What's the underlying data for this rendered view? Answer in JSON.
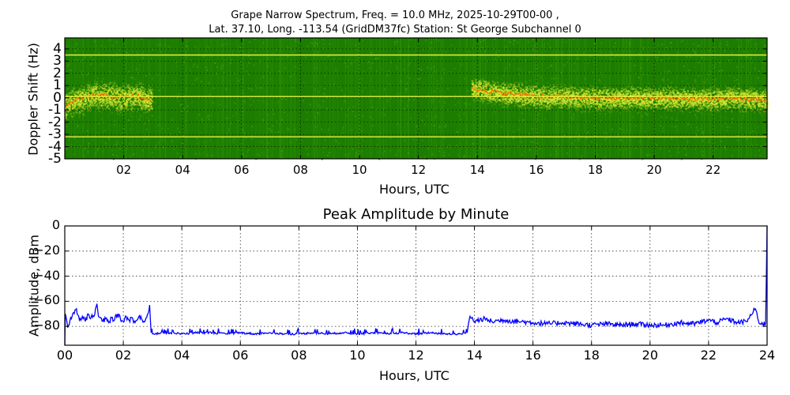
{
  "header": {
    "line1": "Grape Narrow Spectrum, Freq. = 10.0 MHz, 2025-10-29T00-00 ,",
    "line2": "Lat.  37.10, Long. -113.54 (GridDM37fc) Station: St George Subchannel 0"
  },
  "spectrogram": {
    "ylabel": "Doppler Shift (Hz)",
    "xlabel": "Hours, UTC",
    "yticks": [
      "4",
      "3",
      "2",
      "1",
      "0",
      "-1",
      "-2",
      "-3",
      "-4",
      "-5"
    ],
    "xticks": [
      "02",
      "04",
      "06",
      "08",
      "10",
      "12",
      "14",
      "16",
      "18",
      "20",
      "22"
    ],
    "colors": {
      "background": "#1c7d00",
      "noise": "#3a9a08",
      "signal": "#d8e830",
      "peak": "#ff6a00",
      "carrier_line": "#e8f040"
    }
  },
  "amplitude": {
    "title": "Peak Amplitude by Minute",
    "ylabel": "Amplitude, dBm",
    "xlabel": "Hours, UTC",
    "yticks": [
      "0",
      "−20",
      "−40",
      "−60",
      "−80"
    ],
    "xticks": [
      "00",
      "02",
      "04",
      "06",
      "08",
      "10",
      "12",
      "14",
      "16",
      "18",
      "20",
      "22",
      "24"
    ],
    "line_color": "#0000ff"
  },
  "chart_data": [
    {
      "type": "heatmap",
      "title": "Grape Narrow Spectrum, Freq. = 10.0 MHz, 2025-10-29T00-00 , Lat.  37.10, Long. -113.54 (GridDM37fc) Station: St George Subchannel 0",
      "xlabel": "Hours, UTC",
      "ylabel": "Doppler Shift (Hz)",
      "xlim": [
        0,
        23.83
      ],
      "ylim": [
        -5,
        4.9
      ],
      "xticks": [
        "02",
        "04",
        "06",
        "08",
        "10",
        "12",
        "14",
        "16",
        "18",
        "20",
        "22"
      ],
      "yticks": [
        4,
        3,
        2,
        1,
        0,
        -1,
        -2,
        -3,
        -4,
        -5
      ],
      "grid": true,
      "constant_lines_hz": [
        3.5,
        0.1,
        -3.2
      ],
      "signal_segments": [
        {
          "start_hour": 0.0,
          "end_hour": 2.95,
          "doppler_hz": [
            -0.6,
            -0.3,
            -0.1,
            0.1,
            0.3,
            0.2,
            0.1,
            0.0,
            0.1,
            0.2,
            0.0,
            -0.2
          ],
          "spread_hz": 1.8
        },
        {
          "start_hour": 13.8,
          "end_hour": 23.83,
          "doppler_hz": [
            0.8,
            0.5,
            0.3,
            0.2,
            0.1,
            0.1,
            0.0,
            0.0,
            0.0,
            0.0,
            0.0,
            0.0,
            -0.1,
            -0.1,
            0.0,
            -0.1,
            -0.2
          ],
          "spread_hz": 1.5
        }
      ]
    },
    {
      "type": "line",
      "title": "Peak Amplitude by Minute",
      "xlabel": "Hours, UTC",
      "ylabel": "Amplitude, dBm",
      "xlim": [
        0,
        24
      ],
      "ylim": [
        -95,
        0
      ],
      "grid": true,
      "xticks": [
        "00",
        "02",
        "04",
        "06",
        "08",
        "10",
        "12",
        "14",
        "16",
        "18",
        "20",
        "22",
        "24"
      ],
      "yticks": [
        0,
        -20,
        -40,
        -60,
        -80
      ],
      "series": [
        {
          "name": "Peak Amplitude",
          "x": [
            0.0,
            0.02,
            0.1,
            0.2,
            0.3,
            0.4,
            0.5,
            0.6,
            0.7,
            0.8,
            0.9,
            1.0,
            1.1,
            1.15,
            1.2,
            1.3,
            1.4,
            1.5,
            1.6,
            1.7,
            1.8,
            1.9,
            2.0,
            2.1,
            2.2,
            2.3,
            2.4,
            2.5,
            2.6,
            2.7,
            2.8,
            2.9,
            2.95,
            3.0,
            3.5,
            4.0,
            4.5,
            5.0,
            5.5,
            6.0,
            6.5,
            7.0,
            7.5,
            8.0,
            8.5,
            9.0,
            9.5,
            10.0,
            10.5,
            11.0,
            11.5,
            12.0,
            12.5,
            13.0,
            13.5,
            13.75,
            13.85,
            14.0,
            14.3,
            14.6,
            15.0,
            15.5,
            16.0,
            16.5,
            17.0,
            17.5,
            18.0,
            18.5,
            19.0,
            19.5,
            20.0,
            20.5,
            21.0,
            21.5,
            22.0,
            22.3,
            22.6,
            23.0,
            23.3,
            23.6,
            23.75,
            23.85,
            23.95,
            24.0
          ],
          "values": [
            -95,
            -70,
            -81,
            -73,
            -69,
            -66,
            -75,
            -72,
            -76,
            -70,
            -73,
            -72,
            -62,
            -72,
            -73,
            -76,
            -74,
            -77,
            -73,
            -75,
            -70,
            -74,
            -76,
            -72,
            -75,
            -73,
            -77,
            -74,
            -72,
            -76,
            -73,
            -63,
            -85,
            -86,
            -85,
            -86,
            -85,
            -85,
            -86,
            -85,
            -86,
            -85,
            -86,
            -86,
            -85,
            -86,
            -85,
            -86,
            -85,
            -86,
            -85,
            -86,
            -85,
            -86,
            -86,
            -85,
            -72,
            -76,
            -74,
            -76,
            -75,
            -76,
            -77,
            -78,
            -77,
            -78,
            -79,
            -78,
            -79,
            -78,
            -79,
            -79,
            -77,
            -78,
            -75,
            -77,
            -74,
            -77,
            -76,
            -66,
            -78,
            -78,
            -78,
            0
          ]
        }
      ]
    }
  ]
}
